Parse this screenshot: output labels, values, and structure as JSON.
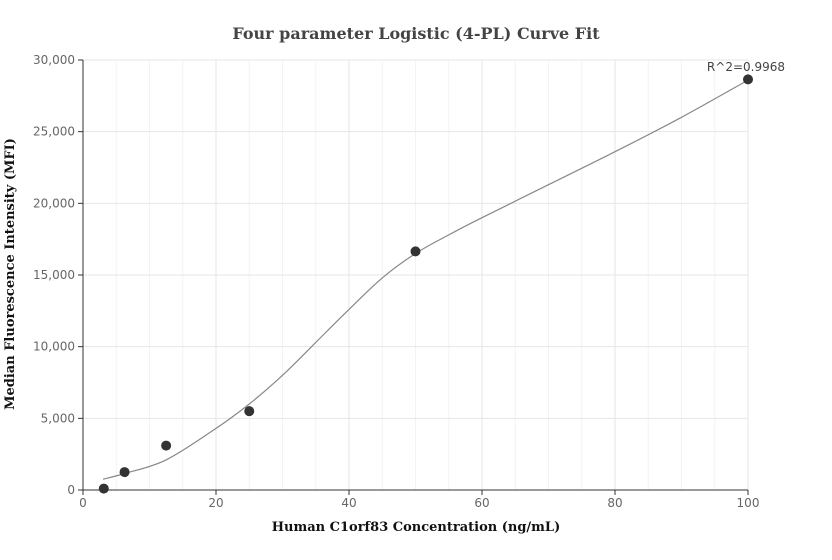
{
  "chart_data": {
    "type": "scatter",
    "title": "Four parameter Logistic (4-PL) Curve Fit",
    "xlabel": "Human C1orf83 Concentration (ng/mL)",
    "ylabel": "Median Fluorescence Intensity (MFI)",
    "xlim": [
      0,
      100
    ],
    "ylim": [
      0,
      30000
    ],
    "x_ticks": [
      0,
      20,
      40,
      60,
      80,
      100
    ],
    "x_tick_labels": [
      "0",
      "20",
      "40",
      "60",
      "80",
      "100"
    ],
    "y_ticks": [
      0,
      5000,
      10000,
      15000,
      20000,
      25000,
      30000
    ],
    "y_tick_labels": [
      "0",
      "5,000",
      "10,000",
      "15,000",
      "20,000",
      "25,000",
      "30,000"
    ],
    "grid": true,
    "points": {
      "x": [
        3.125,
        6.25,
        12.5,
        25,
        50,
        100
      ],
      "y": [
        100,
        1250,
        3100,
        5500,
        16650,
        28650
      ]
    },
    "fit_curve": {
      "x": [
        3,
        6.25,
        12.5,
        20,
        25,
        30,
        35,
        40,
        45,
        50,
        55,
        60,
        70,
        80,
        90,
        100
      ],
      "y": [
        750,
        1150,
        2100,
        4300,
        6000,
        8000,
        10300,
        12600,
        14800,
        16500,
        17800,
        19000,
        21300,
        23600,
        26000,
        28600
      ]
    },
    "annotation": "R^2=0.9968",
    "colors": {
      "points": "#333333",
      "curve": "#888888",
      "grid": "#e6e6e6",
      "axis": "#333333"
    }
  }
}
